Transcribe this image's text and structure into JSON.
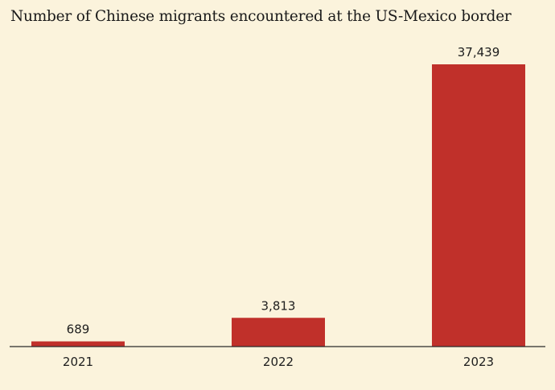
{
  "chart_data": {
    "type": "bar",
    "title": "Number of Chinese migrants encountered at the US-Mexico border",
    "categories": [
      "2021",
      "2022",
      "2023"
    ],
    "values": [
      689,
      3813,
      37439
    ],
    "value_labels": [
      "689",
      "3,813",
      "37,439"
    ],
    "xlabel": "",
    "ylabel": "",
    "ylim": [
      0,
      37439
    ],
    "grid": false,
    "legend": "none",
    "bar_color": "#c0302a",
    "axis_color": "#2a2a2a"
  }
}
